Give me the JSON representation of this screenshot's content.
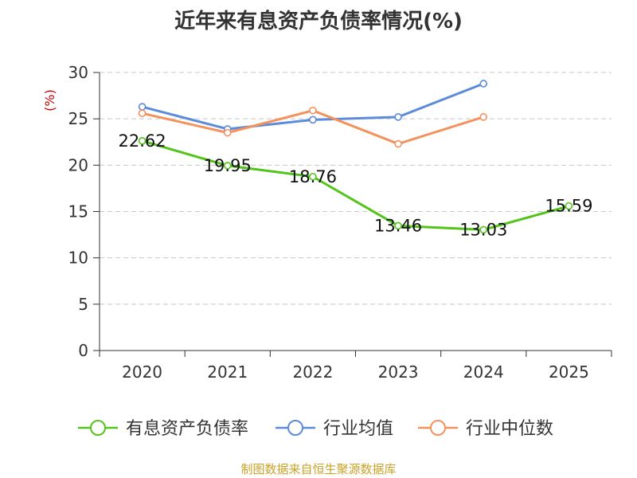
{
  "chart_data": {
    "type": "line",
    "title": "近年来有息资产负债率情况(%)",
    "ylabel": "(%)",
    "xlabel": "",
    "categories": [
      "2020",
      "2021",
      "2022",
      "2023",
      "2024",
      "2025"
    ],
    "ylim": [
      0,
      30
    ],
    "yticks": [
      0,
      5,
      10,
      15,
      20,
      25,
      30
    ],
    "grid": true,
    "legend_position": "bottom",
    "series": [
      {
        "name": "有息资产负债率",
        "color": "#52c41a",
        "values": [
          22.62,
          19.95,
          18.76,
          13.46,
          13.03,
          15.59
        ],
        "show_labels": true
      },
      {
        "name": "行业均值",
        "color": "#5b8bd9",
        "values": [
          26.3,
          23.9,
          24.9,
          25.2,
          28.8,
          null
        ],
        "show_labels": false
      },
      {
        "name": "行业中位数",
        "color": "#f4925e",
        "values": [
          25.6,
          23.5,
          25.9,
          22.3,
          25.2,
          null
        ],
        "show_labels": false
      }
    ]
  },
  "source": "制图数据来自恒生聚源数据库"
}
